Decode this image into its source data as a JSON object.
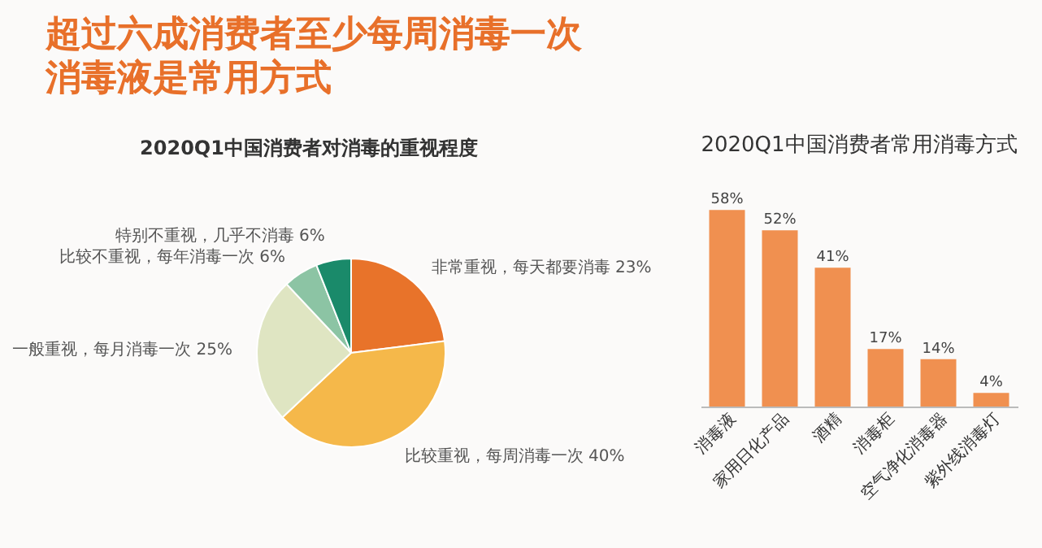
{
  "chart_data": [
    {
      "type": "other",
      "title": "超过六成消费者至少每周消毒一次",
      "subtitle": "消毒液是常用方式"
    },
    {
      "type": "pie",
      "title": "2020Q1中国消费者对消毒的重视程度",
      "categories": [
        "非常重视，每天都要消毒",
        "比较重视，每周消毒一次",
        "一般重视，每月消毒一次",
        "比较不重视，每年消毒一次",
        "特别不重视，几乎不消毒"
      ],
      "values": [
        23,
        40,
        25,
        6,
        6
      ],
      "value_labels": [
        "23%",
        "40%",
        "25%",
        "6%",
        "6%"
      ],
      "colors": [
        "#e8732a",
        "#f5b84a",
        "#dfe5c2",
        "#8cc4a4",
        "#1a8a6a"
      ]
    },
    {
      "type": "bar",
      "title": "2020Q1中国消费者常用消毒方式",
      "categories": [
        "消毒液",
        "家用日化产品",
        "酒精",
        "消毒柜",
        "空气净化消毒器",
        "紫外线消毒灯"
      ],
      "values": [
        58,
        52,
        41,
        17,
        14,
        4
      ],
      "value_labels": [
        "58%",
        "52%",
        "41%",
        "17%",
        "14%",
        "4%"
      ],
      "color": "#f09050"
    }
  ]
}
